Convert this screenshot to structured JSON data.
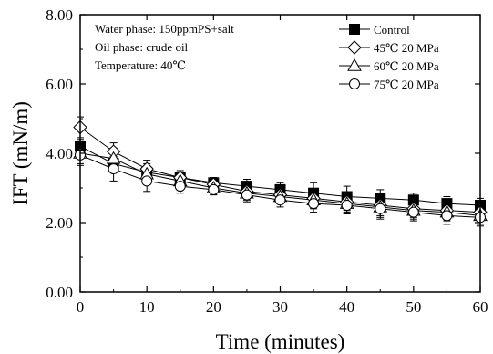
{
  "chart_data": {
    "type": "line",
    "xlabel": "Time (minutes)",
    "ylabel": "IFT (mN/m)",
    "xlim": [
      0,
      60
    ],
    "ylim": [
      0,
      8
    ],
    "xticks": [
      0,
      10,
      20,
      30,
      40,
      50,
      60
    ],
    "yticks": [
      0,
      2,
      4,
      6,
      8
    ],
    "xtick_labels": [
      "0",
      "10",
      "20",
      "30",
      "40",
      "50",
      "60"
    ],
    "ytick_labels": [
      "0.00",
      "2.00",
      "4.00",
      "6.00",
      "8.00"
    ],
    "grid": false,
    "legend_position": "top-right",
    "annotations": [
      "Water phase: 150ppmPS+salt",
      "Oil phase:  crude oil",
      "Temperature: 40℃"
    ],
    "x": [
      0,
      5,
      10,
      15,
      20,
      25,
      30,
      35,
      40,
      45,
      50,
      55,
      60
    ],
    "series": [
      {
        "name": "Control",
        "marker": "filled-square",
        "values": [
          4.2,
          3.7,
          3.45,
          3.3,
          3.15,
          3.05,
          2.95,
          2.85,
          2.75,
          2.7,
          2.65,
          2.55,
          2.5
        ],
        "errors": [
          0.2,
          0.2,
          0.2,
          0.15,
          0.15,
          0.2,
          0.2,
          0.3,
          0.3,
          0.25,
          0.2,
          0.2,
          0.2
        ]
      },
      {
        "name": "45℃ 20 MPa",
        "marker": "open-diamond",
        "values": [
          4.75,
          4.05,
          3.55,
          3.3,
          3.1,
          2.9,
          2.8,
          2.7,
          2.6,
          2.5,
          2.4,
          2.35,
          2.3
        ],
        "errors": [
          0.3,
          0.25,
          0.25,
          0.2,
          0.2,
          0.2,
          0.2,
          0.25,
          0.25,
          0.3,
          0.25,
          0.25,
          0.25
        ]
      },
      {
        "name": "60℃ 20 MPa",
        "marker": "open-triangle",
        "values": [
          4.0,
          3.85,
          3.4,
          3.2,
          3.0,
          2.85,
          2.75,
          2.65,
          2.55,
          2.45,
          2.35,
          2.3,
          2.2
        ],
        "errors": [
          0.3,
          0.3,
          0.3,
          0.2,
          0.2,
          0.2,
          0.2,
          0.25,
          0.25,
          0.3,
          0.25,
          0.25,
          0.25
        ]
      },
      {
        "name": "75℃ 20 MPa",
        "marker": "open-circle",
        "values": [
          3.95,
          3.55,
          3.2,
          3.05,
          2.95,
          2.8,
          2.65,
          2.55,
          2.5,
          2.4,
          2.3,
          2.2,
          2.15
        ],
        "errors": [
          0.3,
          0.35,
          0.3,
          0.2,
          0.15,
          0.2,
          0.2,
          0.25,
          0.25,
          0.3,
          0.25,
          0.25,
          0.25
        ]
      }
    ]
  }
}
